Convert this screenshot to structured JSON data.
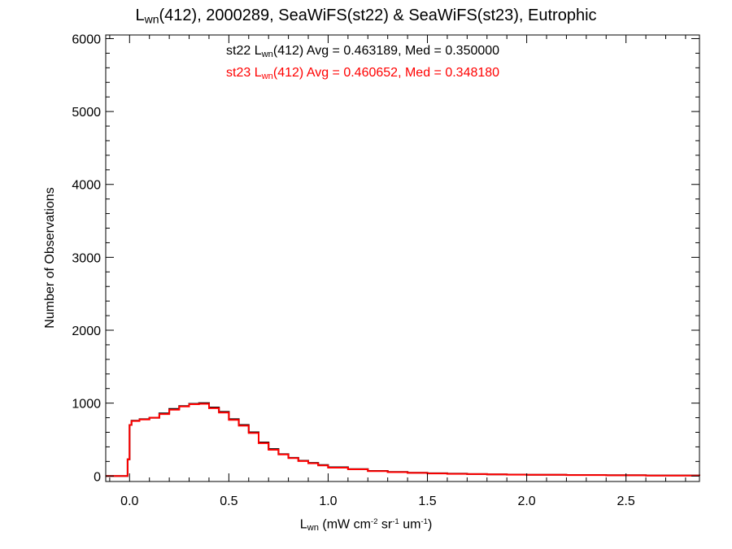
{
  "chart_data": {
    "type": "line",
    "title": {
      "lead": "L",
      "sub": "wn",
      "rest": "(412), 2000289, SeaWiFS(st22) & SeaWiFS(st23), Eutrophic"
    },
    "xlabel": {
      "lead": "L",
      "sub": "wn",
      "p1": " (mW cm",
      "sup1": "-2",
      "p2": " sr",
      "sup2": "-1",
      "p3": " um",
      "sup3": "-1",
      "p4": ")"
    },
    "ylabel": "Number of Observations",
    "xlim": [
      -0.12,
      2.87
    ],
    "ylim": [
      -75,
      6050
    ],
    "xticks": [
      0.0,
      0.5,
      1.0,
      1.5,
      2.0,
      2.5
    ],
    "xtick_labels": [
      "0.0",
      "0.5",
      "1.0",
      "1.5",
      "2.0",
      "2.5"
    ],
    "yticks": [
      0,
      1000,
      2000,
      3000,
      4000,
      5000,
      6000
    ],
    "ytick_labels": [
      "0",
      "1000",
      "2000",
      "3000",
      "4000",
      "5000",
      "6000"
    ],
    "grid": false,
    "annotations": [
      {
        "series": "st22",
        "color": "#000000",
        "pre": "st22 L",
        "sub": "wn",
        "post": "(412) Avg = 0.463189, Med = 0.350000"
      },
      {
        "series": "st23",
        "color": "#ff0000",
        "pre": "st23 L",
        "sub": "wn",
        "post": "(412) Avg = 0.460652, Med = 0.348180"
      }
    ],
    "step_x": [
      -0.12,
      -0.01,
      0.0,
      0.01,
      0.05,
      0.1,
      0.15,
      0.2,
      0.25,
      0.3,
      0.35,
      0.4,
      0.45,
      0.5,
      0.55,
      0.6,
      0.65,
      0.7,
      0.75,
      0.8,
      0.85,
      0.9,
      0.95,
      1.0,
      1.1,
      1.2,
      1.3,
      1.4,
      1.5,
      1.6,
      1.7,
      1.8,
      1.9,
      2.0,
      2.2,
      2.4,
      2.6,
      2.87
    ],
    "series": [
      {
        "name": "st22",
        "color": "#000000",
        "values": [
          0,
          230,
          700,
          760,
          780,
          800,
          860,
          920,
          960,
          990,
          1000,
          940,
          880,
          780,
          700,
          600,
          460,
          370,
          300,
          250,
          210,
          180,
          150,
          120,
          95,
          70,
          55,
          45,
          38,
          32,
          27,
          23,
          20,
          17,
          14,
          11,
          8,
          6
        ]
      },
      {
        "name": "st23",
        "color": "#ff0000",
        "values": [
          0,
          230,
          700,
          755,
          775,
          800,
          850,
          910,
          955,
          985,
          990,
          930,
          870,
          770,
          690,
          590,
          450,
          360,
          295,
          245,
          205,
          175,
          145,
          115,
          92,
          68,
          53,
          43,
          36,
          30,
          26,
          22,
          19,
          16,
          13,
          10,
          7,
          5
        ]
      }
    ]
  }
}
